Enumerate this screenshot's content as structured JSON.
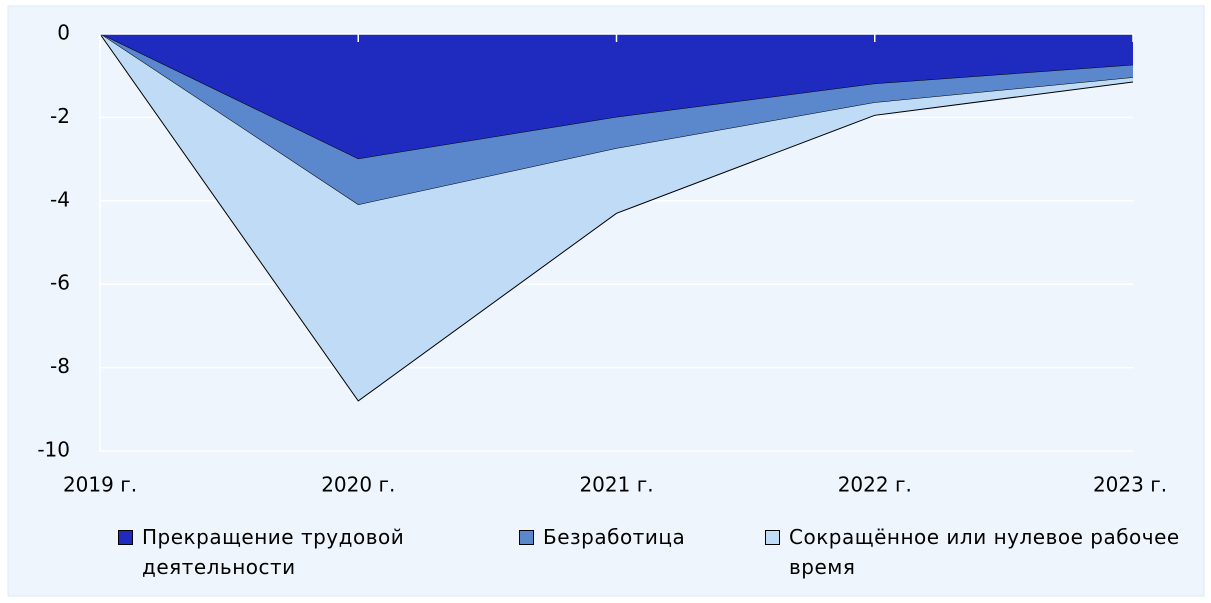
{
  "chart_data": {
    "type": "stacked-area",
    "categories": [
      "2019 г.",
      "2020 г.",
      "2021 г.",
      "2022 г.",
      "2023 г."
    ],
    "series": [
      {
        "name": "Прекращение трудовой деятельности",
        "color": "#1f2bbf",
        "values": [
          0,
          -3.0,
          -2.0,
          -1.2,
          -0.75
        ]
      },
      {
        "name": "Безработица",
        "color": "#5b87cc",
        "values": [
          0,
          -1.1,
          -0.75,
          -0.45,
          -0.3
        ]
      },
      {
        "name": "Сокращённое или нулевое рабочее время",
        "color": "#c0dbf5",
        "values": [
          0,
          -4.7,
          -1.55,
          -0.3,
          -0.1
        ]
      }
    ],
    "ylim": [
      -10,
      0
    ],
    "yticks": [
      0,
      -2,
      -4,
      -6,
      -8,
      -10
    ],
    "grid": true
  }
}
